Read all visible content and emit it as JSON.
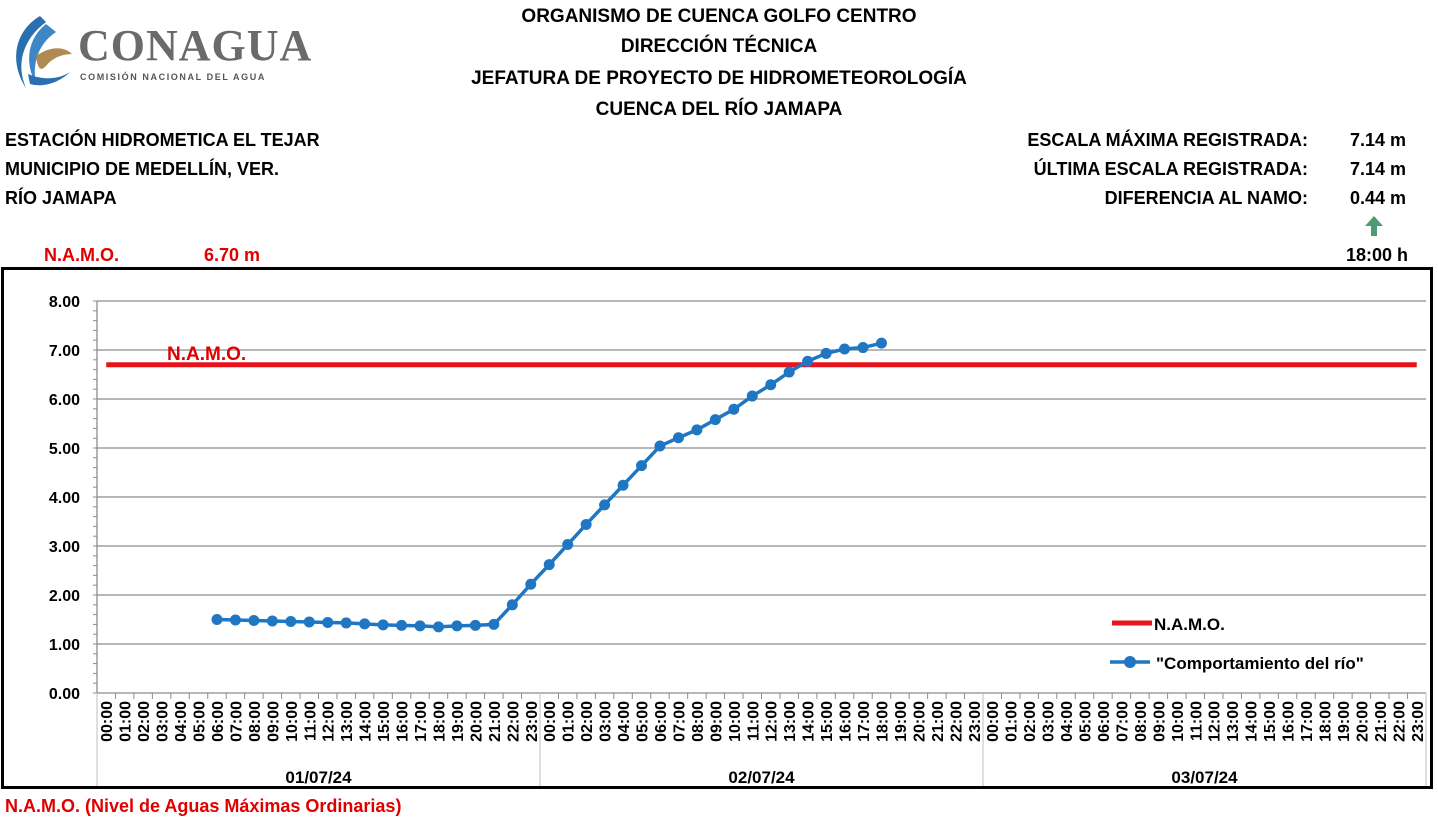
{
  "logo": {
    "name": "CONAGUA",
    "subtitle": "COMISIÓN NACIONAL DEL AGUA"
  },
  "header": {
    "line1": "ORGANISMO DE CUENCA GOLFO CENTRO",
    "line2": "DIRECCIÓN TÉCNICA",
    "line3": "JEFATURA DE PROYECTO DE HIDROMETEOROLOGÍA",
    "line4": "CUENCA DEL RÍO JAMAPA"
  },
  "station": {
    "name": "ESTACIÓN HIDROMETICA EL TEJAR",
    "municipality": "MUNICIPIO DE MEDELLÍN, VER.",
    "river": "RÍO JAMAPA"
  },
  "stats": {
    "max_label": "ESCALA MÁXIMA REGISTRADA:",
    "max_value": "7.14 m",
    "last_label": "ÚLTIMA ESCALA REGISTRADA:",
    "last_value": "7.14 m",
    "diff_label": "DIFERENCIA AL NAMO:",
    "diff_value": "0.44 m",
    "trend_icon": "arrow-up-icon",
    "time": "18:00 h"
  },
  "namo": {
    "label": "N.A.M.O.",
    "value": "6.70 m"
  },
  "footer": {
    "note": "N.A.M.O. (Nivel de Aguas Máximas Ordinarias)"
  },
  "colors": {
    "namo": "#e8141b",
    "river": "#1f77c4",
    "arrow": "#4f9a74",
    "red_text": "#e00000"
  },
  "chart_data": {
    "type": "line",
    "ylim": [
      0,
      8
    ],
    "yticks": [
      "0.00",
      "1.00",
      "2.00",
      "3.00",
      "4.00",
      "5.00",
      "6.00",
      "7.00",
      "8.00"
    ],
    "hours": [
      "00:00",
      "01:00",
      "02:00",
      "03:00",
      "04:00",
      "05:00",
      "06:00",
      "07:00",
      "08:00",
      "09:00",
      "10:00",
      "11:00",
      "12:00",
      "13:00",
      "14:00",
      "15:00",
      "16:00",
      "17:00",
      "18:00",
      "19:00",
      "20:00",
      "21:00",
      "22:00",
      "23:00"
    ],
    "days": [
      "01/07/24",
      "02/07/24",
      "03/07/24"
    ],
    "namo_annotation": "N.A.M.O.",
    "series": [
      {
        "name": "N.A.M.O.",
        "start_index": 0,
        "values_constant": 6.7,
        "count": 72
      },
      {
        "name": "\"Comportamiento del río\"",
        "start_index": 6,
        "values": [
          1.5,
          1.49,
          1.48,
          1.47,
          1.46,
          1.45,
          1.44,
          1.43,
          1.41,
          1.39,
          1.38,
          1.37,
          1.35,
          1.37,
          1.38,
          1.4,
          1.8,
          2.22,
          2.62,
          3.03,
          3.44,
          3.84,
          4.24,
          4.64,
          5.04,
          5.21,
          5.37,
          5.58,
          5.79,
          6.06,
          6.29,
          6.55,
          6.77,
          6.93,
          7.02,
          7.05,
          7.14
        ]
      }
    ]
  }
}
